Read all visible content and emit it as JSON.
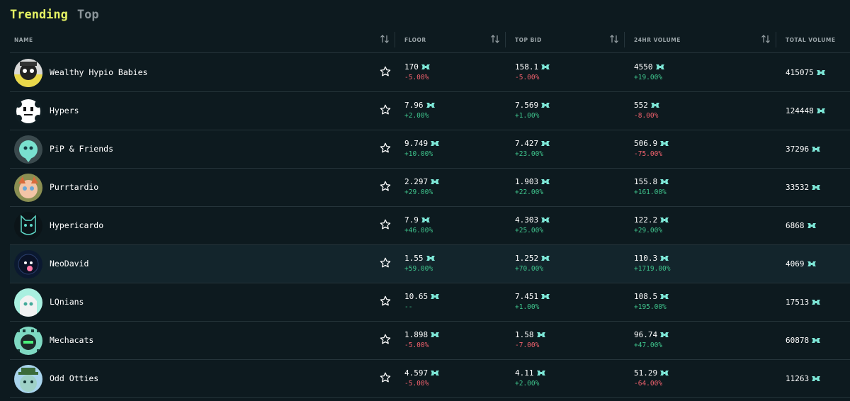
{
  "tabs": [
    {
      "label": "Trending",
      "active": true
    },
    {
      "label": "Top",
      "active": false
    }
  ],
  "columns": {
    "name": "NAME",
    "floor": "FLOOR",
    "top_bid": "TOP BID",
    "volume_24h": "24HR VOLUME",
    "total_volume": "TOTAL VOLUME"
  },
  "colors": {
    "accent": "#e5f263",
    "positive": "#3fc58d",
    "negative": "#f0616d",
    "token": "#7ee8d8",
    "background": "#0d1a1f"
  },
  "icons": {
    "sort": "sort-arrows-icon",
    "favorite": "star-outline-icon",
    "currency": "token-icon"
  },
  "rows": [
    {
      "name": "Wealthy Hypio Babies",
      "floor": "170",
      "floor_change": "-5.00%",
      "top_bid": "158.1",
      "top_bid_change": "-5.00%",
      "vol24": "4550",
      "vol24_change": "+19.00%",
      "total": "415075"
    },
    {
      "name": "Hypers",
      "floor": "7.96",
      "floor_change": "+2.00%",
      "top_bid": "7.569",
      "top_bid_change": "+1.00%",
      "vol24": "552",
      "vol24_change": "-8.00%",
      "total": "124448"
    },
    {
      "name": "PiP & Friends",
      "floor": "9.749",
      "floor_change": "+10.00%",
      "top_bid": "7.427",
      "top_bid_change": "+23.00%",
      "vol24": "506.9",
      "vol24_change": "-75.00%",
      "total": "37296"
    },
    {
      "name": "Purrtardio",
      "floor": "2.297",
      "floor_change": "+29.00%",
      "top_bid": "1.903",
      "top_bid_change": "+22.00%",
      "vol24": "155.8",
      "vol24_change": "+161.00%",
      "total": "33532"
    },
    {
      "name": "Hypericardo",
      "floor": "7.9",
      "floor_change": "+46.00%",
      "top_bid": "4.303",
      "top_bid_change": "+25.00%",
      "vol24": "122.2",
      "vol24_change": "+29.00%",
      "total": "6868"
    },
    {
      "name": "NeoDavid",
      "floor": "1.55",
      "floor_change": "+59.00%",
      "top_bid": "1.252",
      "top_bid_change": "+70.00%",
      "vol24": "110.3",
      "vol24_change": "+1719.00%",
      "total": "4069"
    },
    {
      "name": "LQnians",
      "floor": "10.65",
      "floor_change": "--",
      "top_bid": "7.451",
      "top_bid_change": "+1.00%",
      "vol24": "108.5",
      "vol24_change": "+195.00%",
      "total": "17513"
    },
    {
      "name": "Mechacats",
      "floor": "1.898",
      "floor_change": "-5.00%",
      "top_bid": "1.58",
      "top_bid_change": "-7.00%",
      "vol24": "96.74",
      "vol24_change": "+47.00%",
      "total": "60878"
    },
    {
      "name": "Odd Otties",
      "floor": "4.597",
      "floor_change": "-5.00%",
      "top_bid": "4.11",
      "top_bid_change": "+2.00%",
      "vol24": "51.29",
      "vol24_change": "-64.00%",
      "total": "11263"
    }
  ]
}
